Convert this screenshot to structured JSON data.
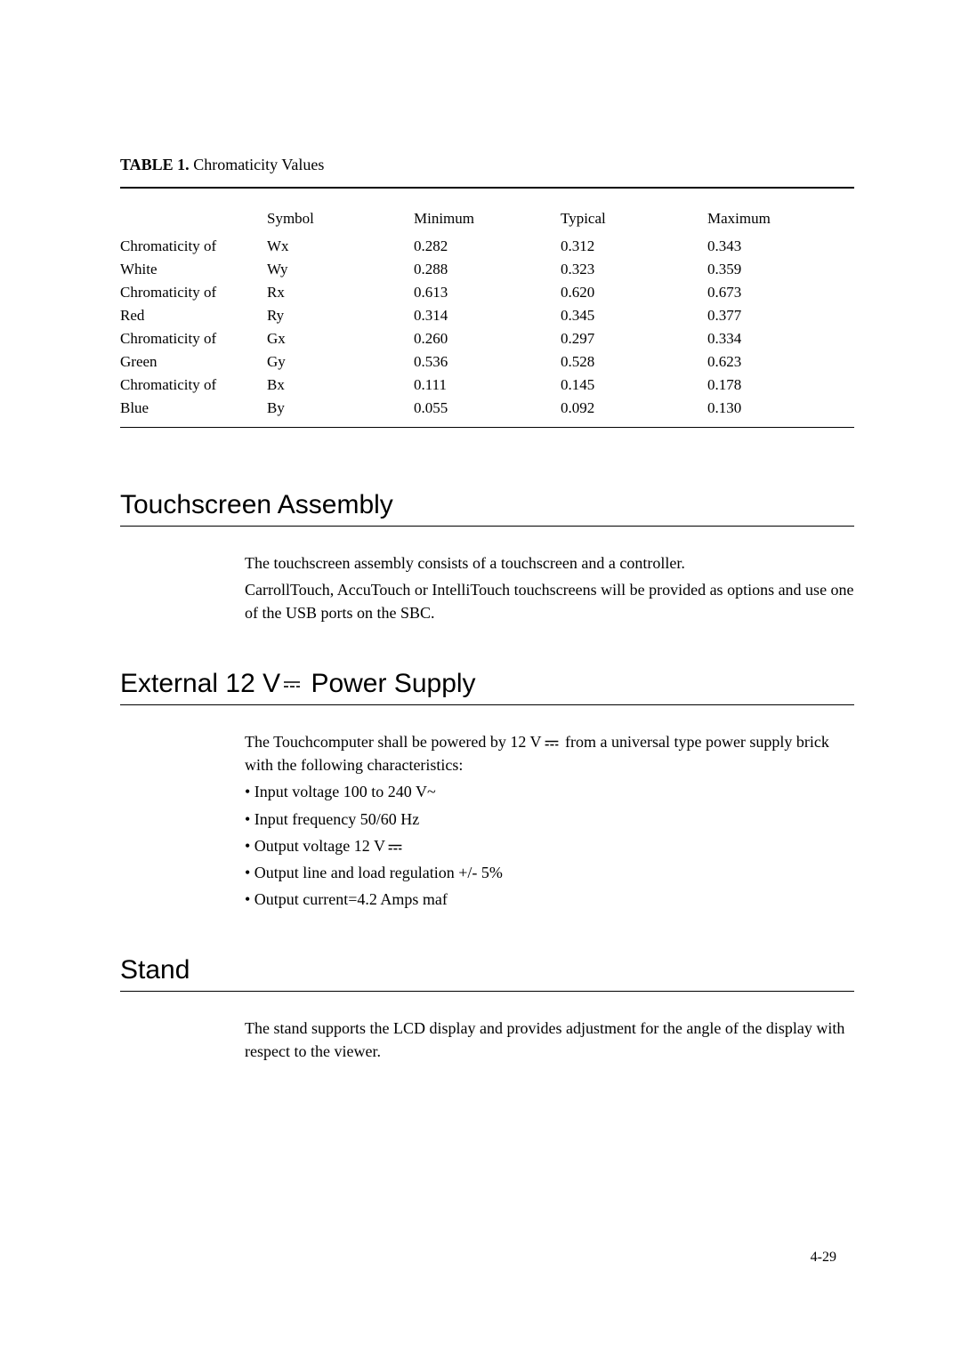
{
  "table": {
    "caption_label": "TABLE 1.",
    "caption_title": "Chromaticity Values",
    "columns": [
      "",
      "Symbol",
      "Minimum",
      "Typical",
      "Maximum"
    ],
    "rows": [
      [
        "Chromaticity of",
        "Wx",
        "0.282",
        "0.312",
        "0.343"
      ],
      [
        "White",
        "Wy",
        "0.288",
        "0.323",
        "0.359"
      ],
      [
        "Chromaticity of",
        "Rx",
        "0.613",
        "0.620",
        "0.673"
      ],
      [
        "Red",
        "Ry",
        "0.314",
        "0.345",
        "0.377"
      ],
      [
        "Chromaticity of",
        "Gx",
        "0.260",
        "0.297",
        "0.334"
      ],
      [
        "Green",
        "Gy",
        "0.536",
        "0.528",
        "0.623"
      ],
      [
        "Chromaticity of",
        "Bx",
        "0.111",
        "0.145",
        "0.178"
      ],
      [
        "Blue",
        "By",
        "0.055",
        "0.092",
        "0.130"
      ]
    ]
  },
  "sections": {
    "touchscreen": {
      "heading": "Touchscreen Assembly",
      "p1": "The touchscreen assembly consists of a touchscreen and a controller.",
      "p2": "CarrollTouch, AccuTouch or IntelliTouch touchscreens will be provided as options and use one of the USB ports on the SBC."
    },
    "power": {
      "heading_prefix": "External 12 V",
      "heading_suffix": " Power Supply",
      "intro_prefix": "The Touchcomputer shall be powered by 12 V",
      "intro_suffix": "  from a universal type power supply brick with the following characteristics:",
      "bullets": [
        "• Input voltage 100 to 240 V~",
        "• Input frequency 50/60 Hz",
        "• Output voltage 12 V",
        "• Output line and load regulation +/- 5%",
        "• Output current=4.2 Amps maf"
      ]
    },
    "stand": {
      "heading": "Stand",
      "p1": "The stand supports the LCD display and provides adjustment for the angle of the display with respect to the viewer."
    }
  },
  "page_number": "4-29",
  "style": {
    "text_color": "#000000",
    "background_color": "#ffffff",
    "heading_font": "Arial",
    "body_font": "Times New Roman"
  }
}
